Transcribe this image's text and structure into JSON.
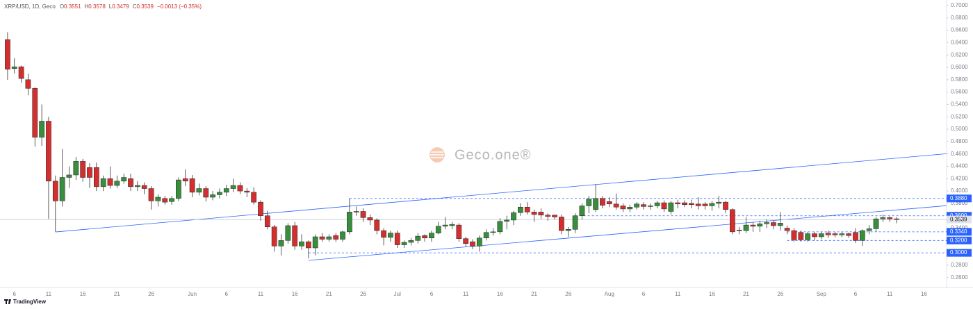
{
  "chart_data": {
    "type": "candlestick",
    "symbol": "XRP/USD, 1D, Geco",
    "legend": [
      {
        "key": "O",
        "value": "0.3551"
      },
      {
        "key": "H",
        "value": "0.3578"
      },
      {
        "key": "L",
        "value": "0.3479"
      },
      {
        "key": "C",
        "value": "0.3539"
      }
    ],
    "change": "−0.0013 (−0.35%)",
    "watermark": "Geco.one®",
    "branding": "TradingView",
    "up_color": "#388e3c",
    "down_color": "#d32f2f",
    "grid": false,
    "categories": [
      null,
      "6",
      null,
      null,
      null,
      null,
      "11",
      null,
      null,
      null,
      null,
      "16",
      null,
      null,
      null,
      null,
      "21",
      null,
      null,
      null,
      null,
      "26",
      null,
      null,
      null,
      null,
      null,
      "Jun",
      null,
      null,
      null,
      null,
      "6",
      null,
      null,
      null,
      null,
      "11",
      null,
      null,
      null,
      null,
      "16",
      null,
      null,
      null,
      null,
      "21",
      null,
      null,
      null,
      null,
      "26",
      null,
      null,
      null,
      null,
      "Jul",
      null,
      null,
      null,
      null,
      "6",
      null,
      null,
      null,
      null,
      "11",
      null,
      null,
      null,
      null,
      "16",
      null,
      null,
      null,
      null,
      "21",
      null,
      null,
      null,
      null,
      "26",
      null,
      null,
      null,
      null,
      null,
      "Aug",
      null,
      null,
      null,
      null,
      "6",
      null,
      null,
      null,
      null,
      "11",
      null,
      null,
      null,
      null,
      "16",
      null,
      null,
      null,
      null,
      "21",
      null,
      null,
      null,
      null,
      "26",
      null,
      null,
      null,
      null,
      null,
      "Sep",
      null,
      null,
      null,
      null,
      "6",
      null,
      null,
      null,
      null,
      "11",
      null,
      null,
      null,
      null,
      "16",
      null,
      null
    ],
    "ohlc": [
      [
        0.645,
        0.657,
        0.58,
        0.597
      ],
      [
        0.598,
        0.615,
        0.59,
        0.601
      ],
      [
        0.601,
        0.603,
        0.575,
        0.582
      ],
      [
        0.58,
        0.59,
        0.555,
        0.566
      ],
      [
        0.566,
        0.568,
        0.472,
        0.487
      ],
      [
        0.487,
        0.54,
        0.473,
        0.513
      ],
      [
        0.513,
        0.52,
        0.355,
        0.416
      ],
      [
        0.416,
        0.425,
        0.334,
        0.384
      ],
      [
        0.384,
        0.468,
        0.375,
        0.422
      ],
      [
        0.422,
        0.44,
        0.405,
        0.426
      ],
      [
        0.426,
        0.455,
        0.418,
        0.448
      ],
      [
        0.448,
        0.452,
        0.415,
        0.422
      ],
      [
        0.438,
        0.445,
        0.405,
        0.422
      ],
      [
        0.438,
        0.446,
        0.4,
        0.407
      ],
      [
        0.407,
        0.425,
        0.4,
        0.42
      ],
      [
        0.42,
        0.44,
        0.404,
        0.409
      ],
      [
        0.409,
        0.425,
        0.405,
        0.416
      ],
      [
        0.416,
        0.428,
        0.412,
        0.422
      ],
      [
        0.42,
        0.428,
        0.4,
        0.407
      ],
      [
        0.407,
        0.416,
        0.4,
        0.409
      ],
      [
        0.409,
        0.414,
        0.395,
        0.404
      ],
      [
        0.404,
        0.408,
        0.37,
        0.384
      ],
      [
        0.384,
        0.395,
        0.375,
        0.39
      ],
      [
        0.388,
        0.392,
        0.378,
        0.382
      ],
      [
        0.383,
        0.392,
        0.378,
        0.388
      ],
      [
        0.388,
        0.422,
        0.384,
        0.418
      ],
      [
        0.42,
        0.435,
        0.408,
        0.416
      ],
      [
        0.42,
        0.426,
        0.39,
        0.398
      ],
      [
        0.398,
        0.412,
        0.393,
        0.404
      ],
      [
        0.404,
        0.408,
        0.383,
        0.39
      ],
      [
        0.39,
        0.4,
        0.385,
        0.394
      ],
      [
        0.394,
        0.404,
        0.388,
        0.398
      ],
      [
        0.398,
        0.41,
        0.392,
        0.404
      ],
      [
        0.404,
        0.42,
        0.398,
        0.409
      ],
      [
        0.409,
        0.414,
        0.395,
        0.4
      ],
      [
        0.4,
        0.405,
        0.39,
        0.398
      ],
      [
        0.398,
        0.406,
        0.378,
        0.382
      ],
      [
        0.382,
        0.385,
        0.352,
        0.36
      ],
      [
        0.36,
        0.368,
        0.338,
        0.342
      ],
      [
        0.342,
        0.345,
        0.302,
        0.311
      ],
      [
        0.311,
        0.33,
        0.296,
        0.32
      ],
      [
        0.32,
        0.348,
        0.315,
        0.344
      ],
      [
        0.344,
        0.35,
        0.305,
        0.311
      ],
      [
        0.311,
        0.33,
        0.305,
        0.318
      ],
      [
        0.318,
        0.32,
        0.291,
        0.308
      ],
      [
        0.308,
        0.33,
        0.296,
        0.326
      ],
      [
        0.326,
        0.332,
        0.318,
        0.322
      ],
      [
        0.322,
        0.33,
        0.318,
        0.326
      ],
      [
        0.328,
        0.332,
        0.318,
        0.322
      ],
      [
        0.322,
        0.336,
        0.318,
        0.334
      ],
      [
        0.334,
        0.388,
        0.33,
        0.366
      ],
      [
        0.367,
        0.375,
        0.36,
        0.366
      ],
      [
        0.367,
        0.372,
        0.35,
        0.357
      ],
      [
        0.357,
        0.362,
        0.345,
        0.353
      ],
      [
        0.353,
        0.356,
        0.33,
        0.336
      ],
      [
        0.336,
        0.34,
        0.312,
        0.325
      ],
      [
        0.325,
        0.336,
        0.318,
        0.332
      ],
      [
        0.332,
        0.336,
        0.308,
        0.313
      ],
      [
        0.313,
        0.32,
        0.308,
        0.317
      ],
      [
        0.317,
        0.324,
        0.312,
        0.32
      ],
      [
        0.32,
        0.332,
        0.315,
        0.327
      ],
      [
        0.328,
        0.33,
        0.318,
        0.324
      ],
      [
        0.324,
        0.336,
        0.318,
        0.332
      ],
      [
        0.332,
        0.35,
        0.33,
        0.343
      ],
      [
        0.343,
        0.358,
        0.338,
        0.345
      ],
      [
        0.344,
        0.35,
        0.338,
        0.346
      ],
      [
        0.345,
        0.348,
        0.318,
        0.323
      ],
      [
        0.323,
        0.326,
        0.31,
        0.315
      ],
      [
        0.318,
        0.322,
        0.306,
        0.311
      ],
      [
        0.311,
        0.328,
        0.302,
        0.324
      ],
      [
        0.324,
        0.338,
        0.32,
        0.333
      ],
      [
        0.333,
        0.34,
        0.328,
        0.334
      ],
      [
        0.334,
        0.356,
        0.33,
        0.351
      ],
      [
        0.351,
        0.36,
        0.338,
        0.353
      ],
      [
        0.353,
        0.368,
        0.345,
        0.365
      ],
      [
        0.365,
        0.38,
        0.36,
        0.374
      ],
      [
        0.374,
        0.382,
        0.362,
        0.366
      ],
      [
        0.366,
        0.37,
        0.35,
        0.362
      ],
      [
        0.366,
        0.372,
        0.355,
        0.361
      ],
      [
        0.361,
        0.364,
        0.352,
        0.359
      ],
      [
        0.361,
        0.362,
        0.354,
        0.358
      ],
      [
        0.358,
        0.362,
        0.33,
        0.336
      ],
      [
        0.336,
        0.342,
        0.326,
        0.338
      ],
      [
        0.338,
        0.364,
        0.332,
        0.36
      ],
      [
        0.36,
        0.38,
        0.354,
        0.376
      ],
      [
        0.376,
        0.392,
        0.364,
        0.387
      ],
      [
        0.37,
        0.411,
        0.366,
        0.388
      ],
      [
        0.388,
        0.392,
        0.372,
        0.377
      ],
      [
        0.383,
        0.39,
        0.374,
        0.379
      ],
      [
        0.379,
        0.396,
        0.37,
        0.374
      ],
      [
        0.376,
        0.38,
        0.366,
        0.371
      ],
      [
        0.371,
        0.378,
        0.366,
        0.374
      ],
      [
        0.374,
        0.382,
        0.37,
        0.379
      ],
      [
        0.378,
        0.382,
        0.37,
        0.375
      ],
      [
        0.375,
        0.38,
        0.37,
        0.376
      ],
      [
        0.376,
        0.384,
        0.372,
        0.381
      ],
      [
        0.381,
        0.385,
        0.366,
        0.371
      ],
      [
        0.367,
        0.384,
        0.362,
        0.381
      ],
      [
        0.381,
        0.386,
        0.372,
        0.379
      ],
      [
        0.381,
        0.385,
        0.374,
        0.378
      ],
      [
        0.38,
        0.386,
        0.372,
        0.378
      ],
      [
        0.379,
        0.39,
        0.37,
        0.376
      ],
      [
        0.379,
        0.382,
        0.37,
        0.376
      ],
      [
        0.376,
        0.384,
        0.368,
        0.38
      ],
      [
        0.38,
        0.392,
        0.372,
        0.382
      ],
      [
        0.382,
        0.384,
        0.364,
        0.37
      ],
      [
        0.37,
        0.372,
        0.33,
        0.334
      ],
      [
        0.337,
        0.342,
        0.33,
        0.336
      ],
      [
        0.336,
        0.358,
        0.332,
        0.345
      ],
      [
        0.345,
        0.35,
        0.334,
        0.343
      ],
      [
        0.343,
        0.352,
        0.334,
        0.347
      ],
      [
        0.347,
        0.354,
        0.34,
        0.349
      ],
      [
        0.349,
        0.352,
        0.338,
        0.344
      ],
      [
        0.344,
        0.366,
        0.336,
        0.348
      ],
      [
        0.34,
        0.344,
        0.33,
        0.336
      ],
      [
        0.336,
        0.34,
        0.318,
        0.321
      ],
      [
        0.333,
        0.336,
        0.318,
        0.321
      ],
      [
        0.321,
        0.334,
        0.318,
        0.331
      ],
      [
        0.331,
        0.334,
        0.32,
        0.326
      ],
      [
        0.326,
        0.334,
        0.322,
        0.331
      ],
      [
        0.332,
        0.336,
        0.324,
        0.329
      ],
      [
        0.331,
        0.334,
        0.325,
        0.329
      ],
      [
        0.329,
        0.334,
        0.325,
        0.331
      ],
      [
        0.331,
        0.333,
        0.324,
        0.328
      ],
      [
        0.333,
        0.34,
        0.316,
        0.32
      ],
      [
        0.32,
        0.338,
        0.311,
        0.336
      ],
      [
        0.336,
        0.345,
        0.33,
        0.339
      ],
      [
        0.339,
        0.358,
        0.334,
        0.355
      ],
      [
        0.355,
        0.362,
        0.35,
        0.357
      ],
      [
        0.357,
        0.359,
        0.35,
        0.355
      ],
      [
        0.3551,
        0.3578,
        0.3479,
        0.3539
      ],
      null,
      null,
      null,
      null,
      null,
      null
    ],
    "ylim": [
      0.244,
      0.7056
    ],
    "yticks": [
      {
        "value": 0.26,
        "label": "0.2600"
      },
      {
        "value": 0.28,
        "label": "0.2800"
      },
      {
        "value": 0.3,
        "label": "0.3000"
      },
      {
        "value": 0.32,
        "label": "0.3200"
      },
      {
        "value": 0.34,
        "label": "0.3400"
      },
      {
        "value": 0.36,
        "label": "0.3600"
      },
      {
        "value": 0.38,
        "label": "0.3800"
      },
      {
        "value": 0.4,
        "label": "0.4000"
      },
      {
        "value": 0.42,
        "label": "0.4200"
      },
      {
        "value": 0.44,
        "label": "0.4400"
      },
      {
        "value": 0.46,
        "label": "0.4600"
      },
      {
        "value": 0.48,
        "label": "0.4800"
      },
      {
        "value": 0.5,
        "label": "0.5000"
      },
      {
        "value": 0.52,
        "label": "0.5200"
      },
      {
        "value": 0.54,
        "label": "0.5400"
      },
      {
        "value": 0.56,
        "label": "0.5600"
      },
      {
        "value": 0.58,
        "label": "0.5800"
      },
      {
        "value": 0.6,
        "label": "0.6000"
      },
      {
        "value": 0.62,
        "label": "0.6200"
      },
      {
        "value": 0.64,
        "label": "0.6400"
      },
      {
        "value": 0.66,
        "label": "0.6600"
      },
      {
        "value": 0.68,
        "label": "0.6800"
      },
      {
        "value": 0.7,
        "label": "0.7000"
      }
    ],
    "levels": [
      {
        "value": 0.388,
        "label": "0.3880",
        "from": 50
      },
      {
        "value": 0.36,
        "label": "0.3600",
        "from": 83
      },
      {
        "value": 0.334,
        "label": "0.3340",
        "from": 114
      },
      {
        "value": 0.32,
        "label": "0.3200",
        "from": 114
      },
      {
        "value": 0.3,
        "label": "0.3000",
        "from": 44
      }
    ],
    "drawings": [
      {
        "style": "solid",
        "x": [
          7,
          137.3
        ],
        "y": [
          0.3338,
          0.4603
        ]
      },
      {
        "style": "solid",
        "x": [
          44,
          137.3
        ],
        "y": [
          0.2878,
          0.3763
        ]
      },
      {
        "style": "dashed",
        "x": [
          50,
          50
        ],
        "y": [
          0.388,
          0.334
        ]
      }
    ]
  }
}
